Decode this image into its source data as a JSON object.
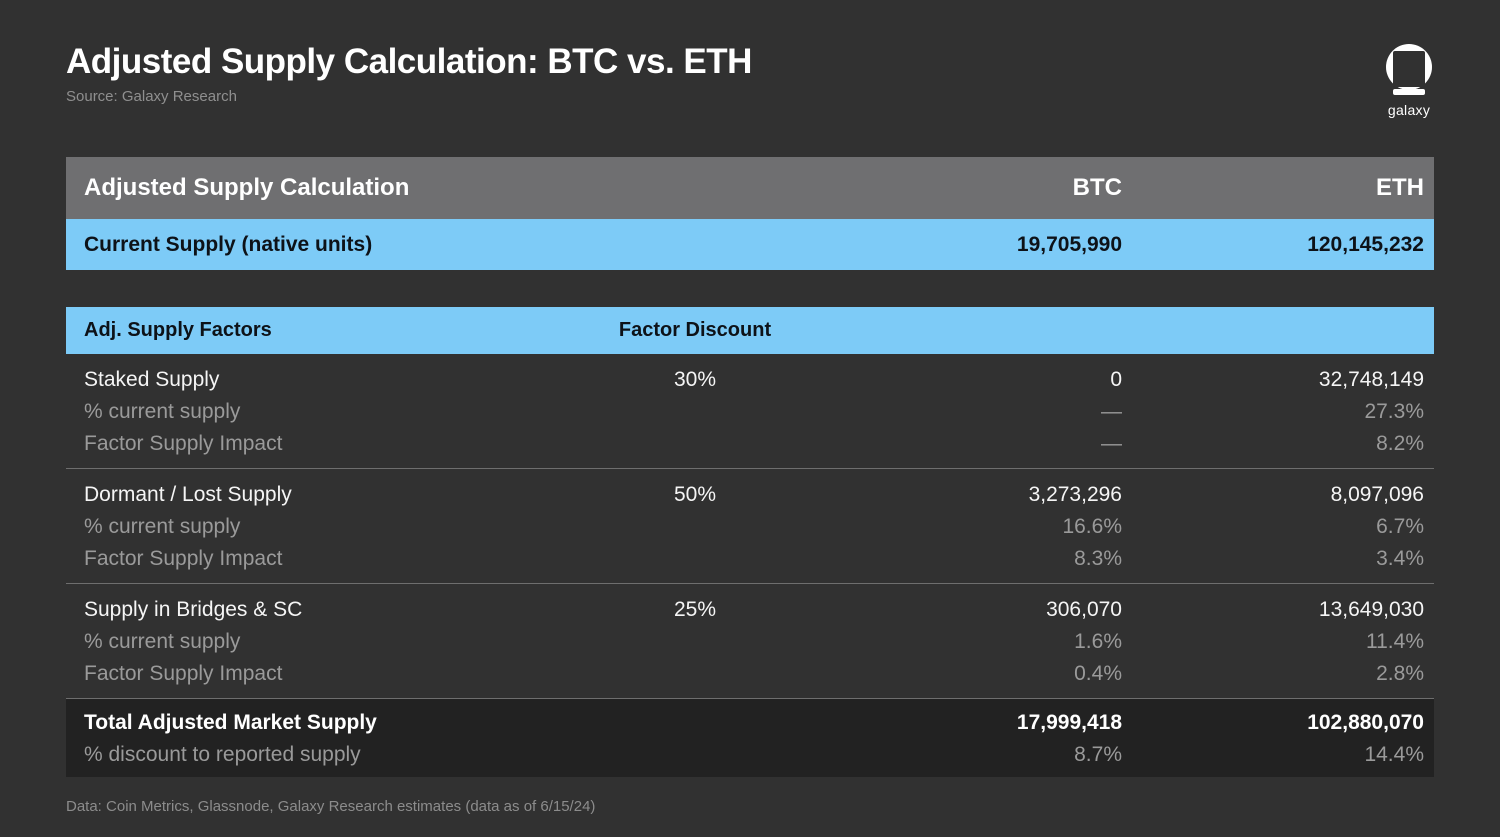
{
  "header": {
    "title": "Adjusted Supply Calculation: BTC vs. ETH",
    "source": "Source: Galaxy Research",
    "logo_text": "galaxy"
  },
  "colors": {
    "background": "#313131",
    "header_gray": "#6F6F71",
    "accent_blue": "#7DCBF7",
    "total_row_bg": "#222222",
    "text_primary": "#FFFFFF",
    "text_secondary": "#9A9A9A",
    "text_on_blue": "#0D1218",
    "separator": "#6E6E6E"
  },
  "summary": {
    "header": {
      "label": "Adjusted Supply Calculation",
      "btc": "BTC",
      "eth": "ETH"
    },
    "current_supply": {
      "label": "Current Supply (native units)",
      "btc": "19,705,990",
      "eth": "120,145,232"
    }
  },
  "factors": {
    "header": {
      "label": "Adj. Supply Factors",
      "discount": "Factor Discount"
    },
    "sections": [
      {
        "discount": "30%",
        "rows": [
          {
            "label": "Staked Supply",
            "btc": "0",
            "eth": "32,748,149"
          },
          {
            "label": "% current supply",
            "btc": "—",
            "eth": "27.3%"
          },
          {
            "label": "Factor Supply Impact",
            "btc": "—",
            "eth": "8.2%"
          }
        ]
      },
      {
        "discount": "50%",
        "rows": [
          {
            "label": "Dormant / Lost Supply",
            "btc": "3,273,296",
            "eth": "8,097,096"
          },
          {
            "label": "% current supply",
            "btc": "16.6%",
            "eth": "6.7%"
          },
          {
            "label": "Factor Supply Impact",
            "btc": "8.3%",
            "eth": "3.4%"
          }
        ]
      },
      {
        "discount": "25%",
        "rows": [
          {
            "label": "Supply in Bridges & SC",
            "btc": "306,070",
            "eth": "13,649,030"
          },
          {
            "label": "% current supply",
            "btc": "1.6%",
            "eth": "11.4%"
          },
          {
            "label": "Factor Supply Impact",
            "btc": "0.4%",
            "eth": "2.8%"
          }
        ]
      }
    ],
    "total": {
      "rows": [
        {
          "label": "Total Adjusted Market Supply",
          "btc": "17,999,418",
          "eth": "102,880,070"
        },
        {
          "label": "% discount to reported supply",
          "btc": "8.7%",
          "eth": "14.4%"
        }
      ]
    }
  },
  "footer": {
    "note": "Data: Coin Metrics, Glassnode, Galaxy Research estimates (data as of 6/15/24)"
  }
}
